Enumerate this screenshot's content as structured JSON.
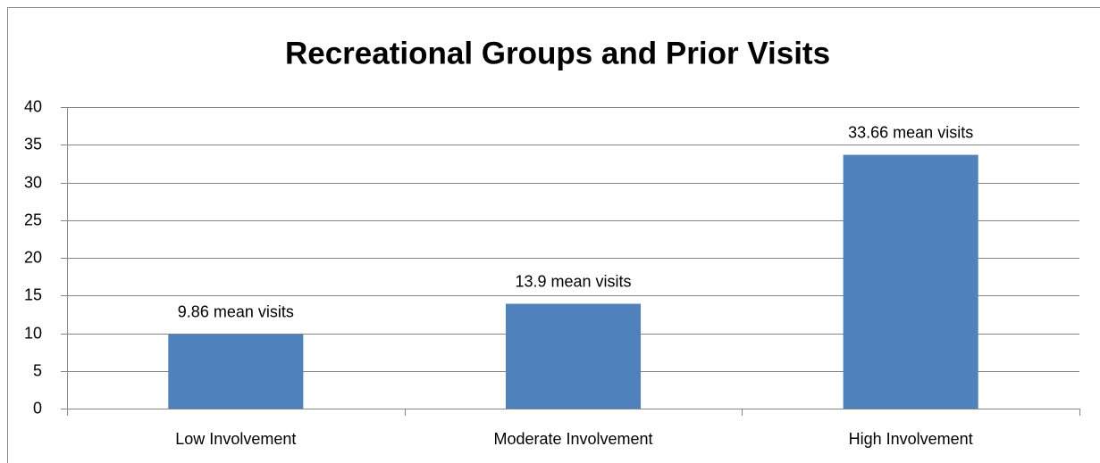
{
  "chart_data": {
    "type": "bar",
    "title": "Recreational Groups and Prior Visits",
    "categories": [
      "Low Involvement",
      "Moderate Involvement",
      "High Involvement"
    ],
    "values": [
      9.86,
      13.9,
      33.66
    ],
    "value_labels": [
      "9.86 mean visits",
      "13.9 mean visits",
      "33.66 mean visits"
    ],
    "color": "#4f81bd",
    "ylim": [
      0,
      40
    ],
    "yticks": [
      0,
      5,
      10,
      15,
      20,
      25,
      30,
      35,
      40
    ],
    "grid": true
  }
}
